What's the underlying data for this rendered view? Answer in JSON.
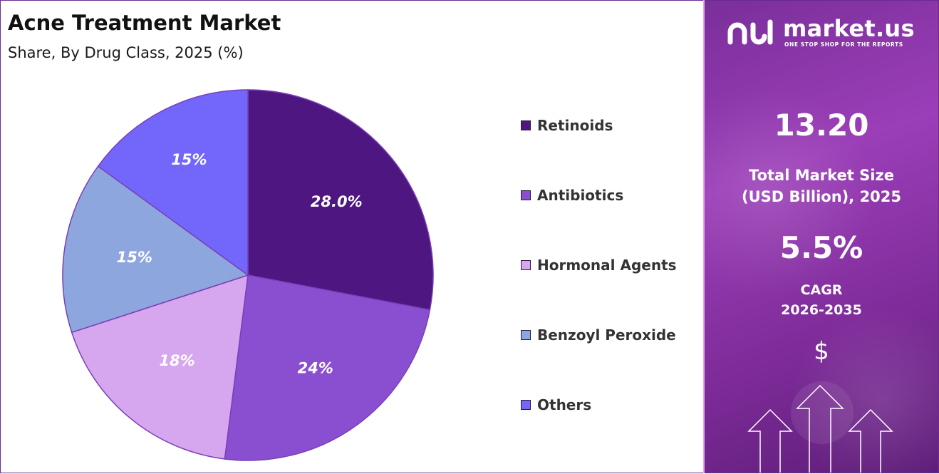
{
  "chart_data": {
    "type": "pie",
    "title": "Acne Treatment Market",
    "subtitle": "Share, By Drug Class, 2025 (%)",
    "categories": [
      "Retinoids",
      "Antibiotics",
      "Hormonal Agents",
      "Benzoyl Peroxide",
      "Others"
    ],
    "values": [
      28.0,
      24,
      18,
      15,
      15
    ],
    "value_labels": [
      "28.0%",
      "24%",
      "18%",
      "15%",
      "15%"
    ],
    "colors": [
      "#4d1680",
      "#8a4fd0",
      "#d6a7ef",
      "#8ea6de",
      "#7367fb"
    ],
    "legend_position": "right",
    "start_angle": "12 o'clock, clockwise"
  },
  "panel": {
    "brand": "market.us",
    "tagline": "ONE STOP SHOP FOR THE REPORTS",
    "market_size_value": "13.20",
    "market_size_label_line1": "Total Market Size",
    "market_size_label_line2": "(USD Billion), 2025",
    "cagr_value": "5.5%",
    "cagr_label_line1": "CAGR",
    "cagr_label_line2": "2026-2035",
    "currency_symbol": "$",
    "icons": [
      "market-us-logo-icon",
      "dollar-icon",
      "up-arrow-icon"
    ]
  },
  "colors": {
    "panel_background": "#8a36a8",
    "border": "#6a2b8f"
  }
}
